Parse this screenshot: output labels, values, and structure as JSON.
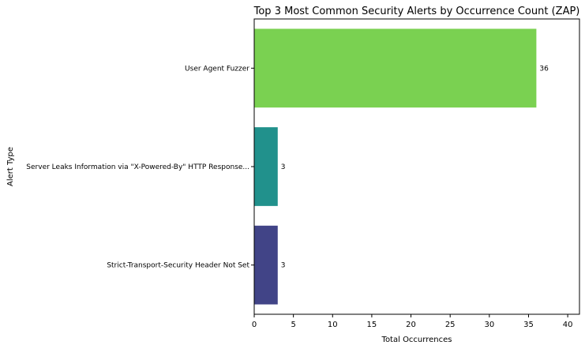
{
  "chart_data": {
    "type": "bar",
    "orientation": "horizontal",
    "title": "Top 3 Most Common Security Alerts by Occurrence Count (ZAP)",
    "xlabel": "Total Occurrences",
    "ylabel": "Alert Type",
    "categories": [
      "User Agent Fuzzer",
      "Server Leaks Information via \"X-Powered-By\" HTTP Response...",
      "Strict-Transport-Security Header Not Set"
    ],
    "values": [
      36,
      3,
      3
    ],
    "data_labels": [
      "36",
      "3",
      "3"
    ],
    "colors": [
      "#7ad151",
      "#21918c",
      "#414487"
    ],
    "xlim": [
      0,
      41.5
    ],
    "xticks": [
      0,
      5,
      10,
      15,
      20,
      25,
      30,
      35,
      40
    ],
    "xtick_labels": [
      "0",
      "5",
      "10",
      "15",
      "20",
      "25",
      "30",
      "35",
      "40"
    ],
    "grid": false,
    "legend": "none"
  }
}
